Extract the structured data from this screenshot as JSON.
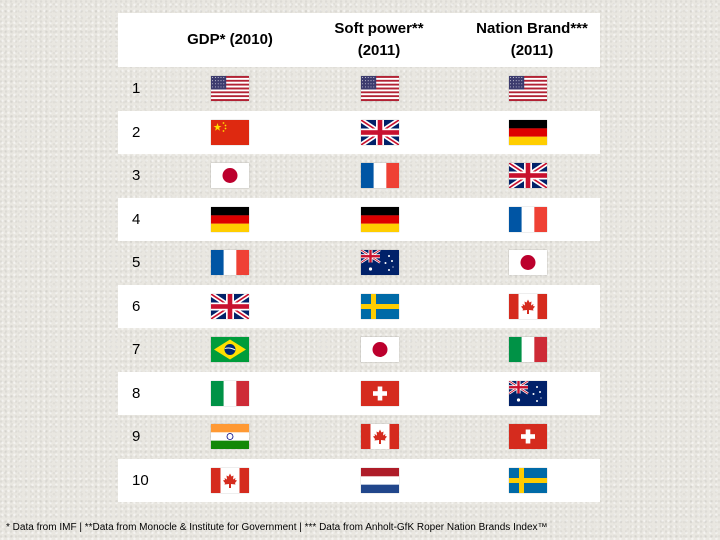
{
  "header": {
    "col1": "GDP* (2010)",
    "col2_line1": "Soft power**",
    "col2_line2": "(2011)",
    "col3_line1": "Nation Brand***",
    "col3_line2": "(2011)"
  },
  "rows": [
    {
      "rank": "1",
      "gdp": "usa",
      "soft": "usa",
      "brand": "usa"
    },
    {
      "rank": "2",
      "gdp": "china",
      "soft": "uk",
      "brand": "germany"
    },
    {
      "rank": "3",
      "gdp": "japan",
      "soft": "france",
      "brand": "uk"
    },
    {
      "rank": "4",
      "gdp": "germany",
      "soft": "germany",
      "brand": "france"
    },
    {
      "rank": "5",
      "gdp": "france",
      "soft": "australia",
      "brand": "japan"
    },
    {
      "rank": "6",
      "gdp": "uk",
      "soft": "sweden",
      "brand": "canada"
    },
    {
      "rank": "7",
      "gdp": "brazil",
      "soft": "japan",
      "brand": "italy"
    },
    {
      "rank": "8",
      "gdp": "italy",
      "soft": "switzerland",
      "brand": "australia"
    },
    {
      "rank": "9",
      "gdp": "india",
      "soft": "canada",
      "brand": "switzerland"
    },
    {
      "rank": "10",
      "gdp": "canada",
      "soft": "netherlands",
      "brand": "sweden"
    }
  ],
  "footnote": "* Data from IMF | **Data from Monocle & Institute for Government | *** Data from Anholt-GfK Roper Nation Brands Index™"
}
